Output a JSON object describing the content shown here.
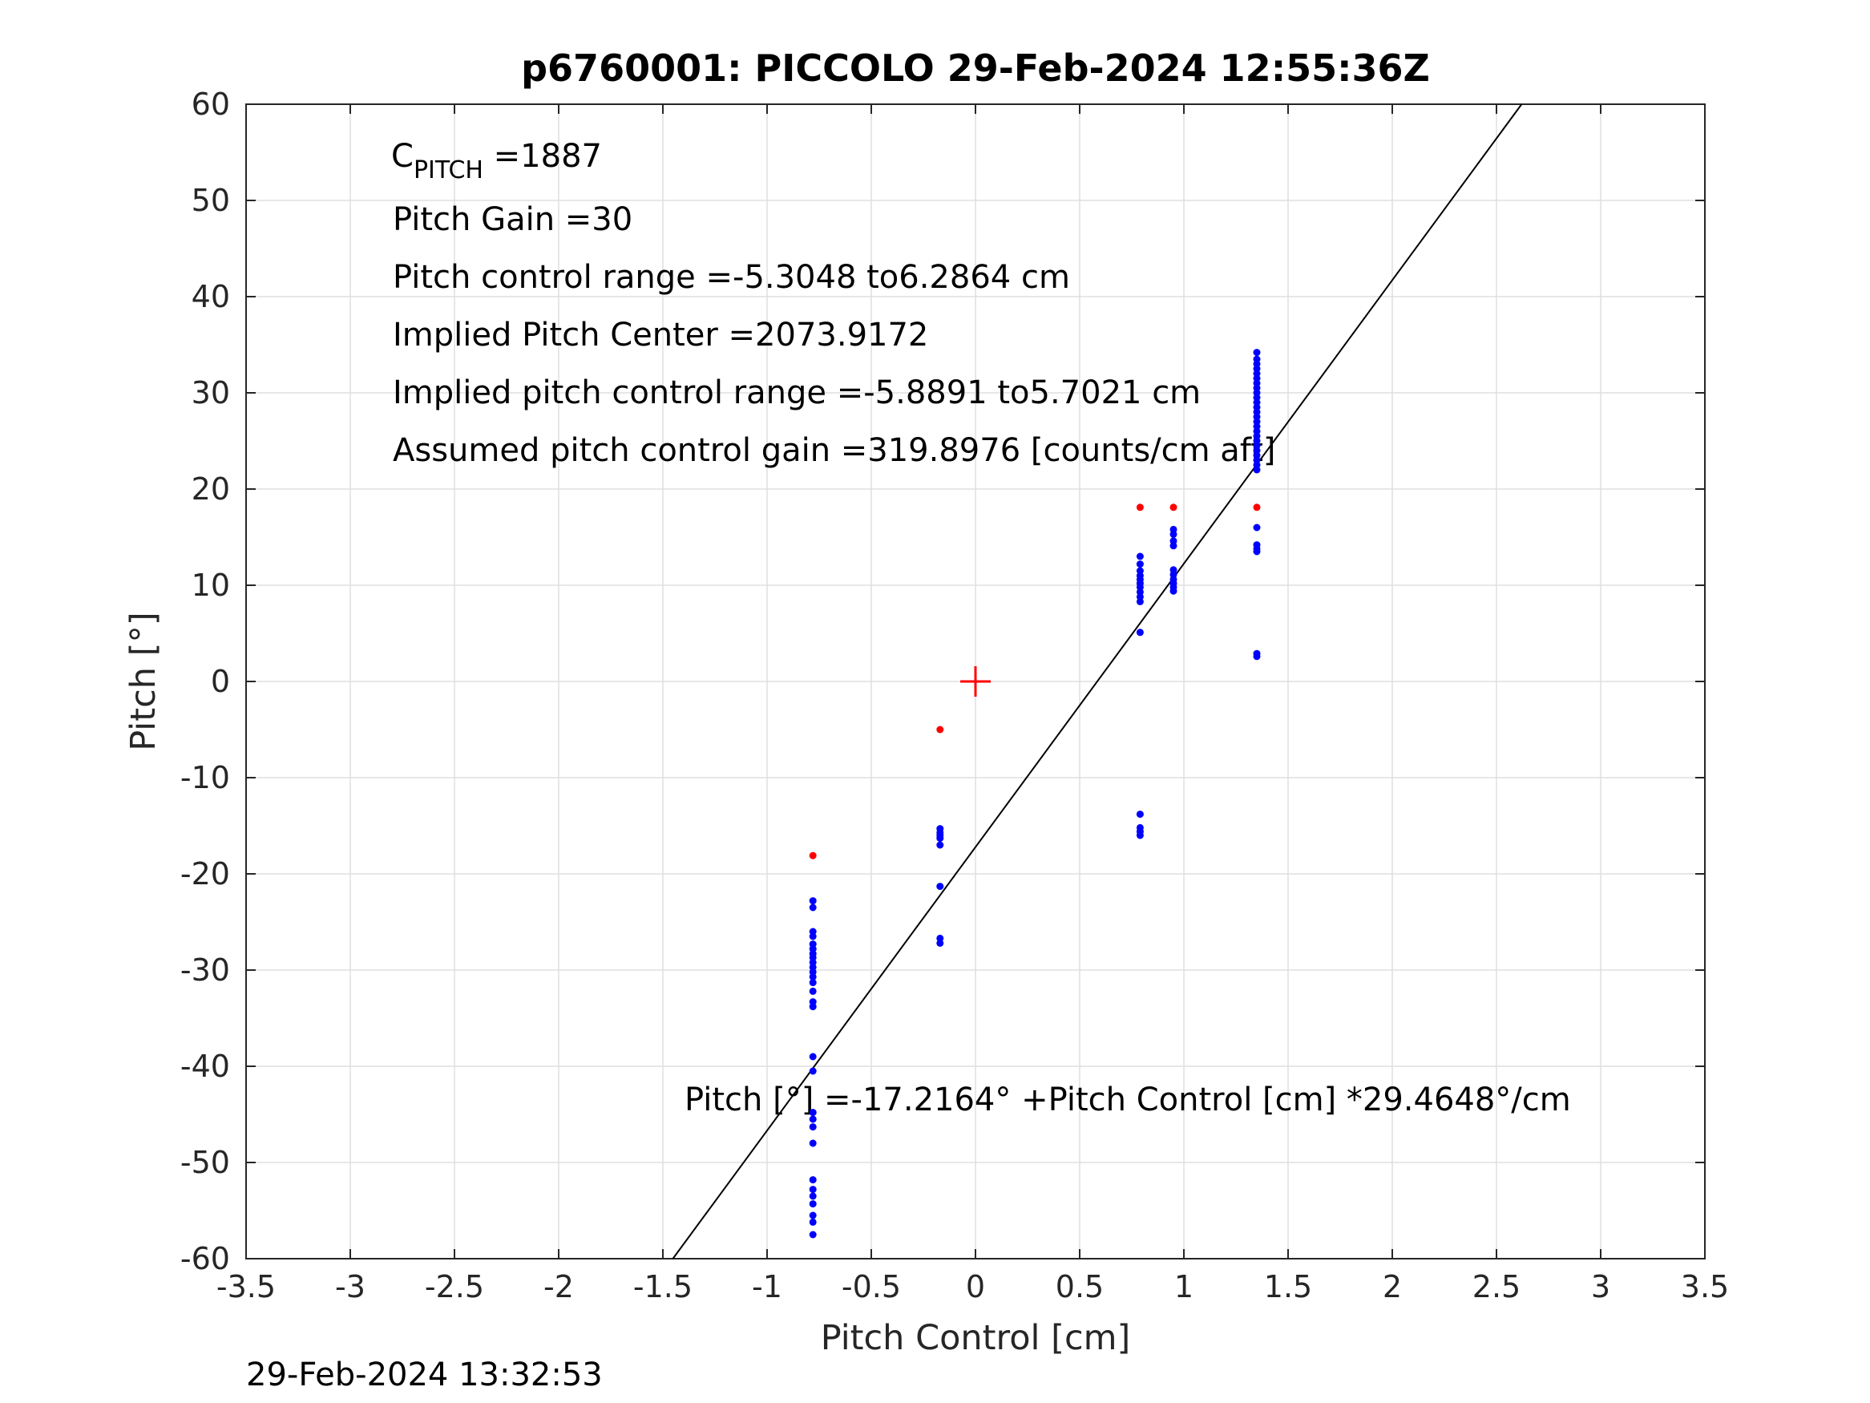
{
  "chart_data": {
    "type": "scatter",
    "title": "p6760001: PICCOLO 29-Feb-2024 12:55:36Z",
    "xlabel": "Pitch Control [cm]",
    "ylabel": "Pitch [°]",
    "xlim": [
      -3.5,
      3.5
    ],
    "ylim": [
      -60,
      60
    ],
    "grid": true,
    "xticks": [
      -3.5,
      -3,
      -2.5,
      -2,
      -1.5,
      -1,
      -0.5,
      0,
      0.5,
      1,
      1.5,
      2,
      2.5,
      3,
      3.5
    ],
    "yticks": [
      -60,
      -50,
      -40,
      -30,
      -20,
      -10,
      0,
      10,
      20,
      30,
      40,
      50,
      60
    ],
    "xtick_labels": [
      "-3.5",
      "-3",
      "-2.5",
      "-2",
      "-1.5",
      "-1",
      "-0.5",
      "0",
      "0.5",
      "1",
      "1.5",
      "2",
      "2.5",
      "3",
      "3.5"
    ],
    "ytick_labels": [
      "-60",
      "-50",
      "-40",
      "-30",
      "-20",
      "-10",
      "0",
      "10",
      "20",
      "30",
      "40",
      "50",
      "60"
    ],
    "annotations": {
      "c_pitch_base": "C",
      "c_pitch_sub": "PITCH",
      "c_pitch_value": " =1887",
      "pitch_gain": "Pitch Gain =30",
      "control_range": "Pitch control range =-5.3048 to6.2864 cm",
      "implied_center": "Implied Pitch Center =2073.9172",
      "implied_range": "Implied pitch control range =-5.8891 to5.7021 cm",
      "assumed_gain": "Assumed pitch control gain =319.8976 [counts/cm aft]",
      "fit_equation": "Pitch [°] =-17.2164° +Pitch Control [cm] *29.4648°/cm"
    },
    "fit_line": {
      "intercept": -17.2164,
      "slope": 29.4648,
      "color": "#000000"
    },
    "center_marker": {
      "x": 0,
      "y": 0,
      "color": "#ff0000"
    },
    "series": [
      {
        "color": "#0000ff",
        "points": [
          [
            -0.78,
            -22.8
          ],
          [
            -0.78,
            -23.5
          ],
          [
            -0.78,
            -26.0
          ],
          [
            -0.78,
            -26.5
          ],
          [
            -0.78,
            -27.3
          ],
          [
            -0.78,
            -27.8
          ],
          [
            -0.78,
            -28.3
          ],
          [
            -0.78,
            -28.7
          ],
          [
            -0.78,
            -29.2
          ],
          [
            -0.78,
            -29.7
          ],
          [
            -0.78,
            -30.2
          ],
          [
            -0.78,
            -30.7
          ],
          [
            -0.78,
            -31.3
          ],
          [
            -0.78,
            -32.2
          ],
          [
            -0.78,
            -33.3
          ],
          [
            -0.78,
            -33.8
          ],
          [
            -0.78,
            -39.0
          ],
          [
            -0.78,
            -40.5
          ],
          [
            -0.78,
            -44.8
          ],
          [
            -0.78,
            -45.5
          ],
          [
            -0.78,
            -46.3
          ],
          [
            -0.78,
            -48.0
          ],
          [
            -0.78,
            -51.8
          ],
          [
            -0.78,
            -52.8
          ],
          [
            -0.78,
            -53.5
          ],
          [
            -0.78,
            -54.3
          ],
          [
            -0.78,
            -55.5
          ],
          [
            -0.78,
            -56.2
          ],
          [
            -0.78,
            -57.5
          ],
          [
            -0.17,
            -15.3
          ],
          [
            -0.17,
            -15.7
          ],
          [
            -0.17,
            -16.0
          ],
          [
            -0.17,
            -16.3
          ],
          [
            -0.17,
            -17.0
          ],
          [
            -0.17,
            -21.3
          ],
          [
            -0.17,
            -26.7
          ],
          [
            -0.17,
            -27.2
          ],
          [
            0.79,
            13.0
          ],
          [
            0.79,
            12.2
          ],
          [
            0.79,
            11.5
          ],
          [
            0.79,
            11.0
          ],
          [
            0.79,
            10.6
          ],
          [
            0.79,
            10.2
          ],
          [
            0.79,
            9.8
          ],
          [
            0.79,
            9.3
          ],
          [
            0.79,
            8.8
          ],
          [
            0.79,
            8.3
          ],
          [
            0.79,
            5.1
          ],
          [
            0.79,
            -13.8
          ],
          [
            0.79,
            -15.2
          ],
          [
            0.79,
            -15.6
          ],
          [
            0.79,
            -16.0
          ],
          [
            0.95,
            15.8
          ],
          [
            0.95,
            15.3
          ],
          [
            0.95,
            14.6
          ],
          [
            0.95,
            14.1
          ],
          [
            0.95,
            11.6
          ],
          [
            0.95,
            11.1
          ],
          [
            0.95,
            10.6
          ],
          [
            0.95,
            10.2
          ],
          [
            0.95,
            9.8
          ],
          [
            0.95,
            9.4
          ],
          [
            1.35,
            34.2
          ],
          [
            1.35,
            33.5
          ],
          [
            1.35,
            33.0
          ],
          [
            1.35,
            32.5
          ],
          [
            1.35,
            32.0
          ],
          [
            1.35,
            31.5
          ],
          [
            1.35,
            31.0
          ],
          [
            1.35,
            30.5
          ],
          [
            1.35,
            30.0
          ],
          [
            1.35,
            29.5
          ],
          [
            1.35,
            29.0
          ],
          [
            1.35,
            28.5
          ],
          [
            1.35,
            28.0
          ],
          [
            1.35,
            27.5
          ],
          [
            1.35,
            27.0
          ],
          [
            1.35,
            26.5
          ],
          [
            1.35,
            26.0
          ],
          [
            1.35,
            25.5
          ],
          [
            1.35,
            25.0
          ],
          [
            1.35,
            24.5
          ],
          [
            1.35,
            24.0
          ],
          [
            1.35,
            23.5
          ],
          [
            1.35,
            23.0
          ],
          [
            1.35,
            22.5
          ],
          [
            1.35,
            22.0
          ],
          [
            1.35,
            16.0
          ],
          [
            1.35,
            14.2
          ],
          [
            1.35,
            13.8
          ],
          [
            1.35,
            13.5
          ],
          [
            1.35,
            2.9
          ],
          [
            1.35,
            2.6
          ]
        ]
      },
      {
        "color": "#ff0000",
        "points": [
          [
            -0.78,
            -18.1
          ],
          [
            -0.17,
            -5.0
          ],
          [
            0.79,
            18.1
          ],
          [
            0.95,
            18.1
          ],
          [
            1.35,
            18.1
          ]
        ]
      }
    ]
  },
  "footer": {
    "timestamp": "29-Feb-2024 13:32:53"
  }
}
